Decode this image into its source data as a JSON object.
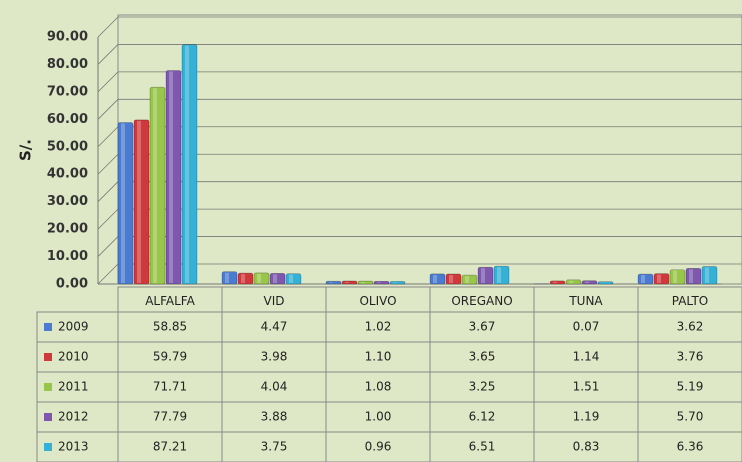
{
  "chart_data": {
    "type": "bar",
    "ylabel": "S/.",
    "categories": [
      "ALFALFA",
      "VID",
      "OLIVO",
      "OREGANO",
      "TUNA",
      "PALTO"
    ],
    "series": [
      {
        "name": "2009",
        "color": "#4a7bd0",
        "values": [
          58.85,
          4.47,
          1.02,
          3.67,
          0.07,
          3.62
        ],
        "value_labels": [
          "58.85",
          "4.47",
          "1.02",
          "3.67",
          "0.07",
          "3.62"
        ]
      },
      {
        "name": "2010",
        "color": "#d0393b",
        "values": [
          59.79,
          3.98,
          1.1,
          3.65,
          1.14,
          3.76
        ],
        "value_labels": [
          "59.79",
          "3.98",
          "1.10",
          "3.65",
          "1.14",
          "3.76"
        ]
      },
      {
        "name": "2011",
        "color": "#98c64a",
        "values": [
          71.71,
          4.04,
          1.08,
          3.25,
          1.51,
          5.19
        ],
        "value_labels": [
          "71.71",
          "4.04",
          "1.08",
          "3.25",
          "1.51",
          "5.19"
        ]
      },
      {
        "name": "2012",
        "color": "#7d58ae",
        "values": [
          77.79,
          3.88,
          1.0,
          6.12,
          1.19,
          5.7
        ],
        "value_labels": [
          "77.79",
          "3.88",
          "1.00",
          "6.12",
          "1.19",
          "5.70"
        ]
      },
      {
        "name": "2013",
        "color": "#35b1d6",
        "values": [
          87.21,
          3.75,
          0.96,
          6.51,
          0.83,
          6.36
        ],
        "value_labels": [
          "87.21",
          "3.75",
          "0.96",
          "6.51",
          "0.83",
          "6.36"
        ]
      }
    ],
    "ylim": [
      0,
      90
    ],
    "yticks": [
      {
        "value": 0,
        "label": "0.00"
      },
      {
        "value": 10,
        "label": "10.00"
      },
      {
        "value": 20,
        "label": "20.00"
      },
      {
        "value": 30,
        "label": "30.00"
      },
      {
        "value": 40,
        "label": "40.00"
      },
      {
        "value": 50,
        "label": "50.00"
      },
      {
        "value": 60,
        "label": "60.00"
      },
      {
        "value": 70,
        "label": "70.00"
      },
      {
        "value": 80,
        "label": "80.00"
      },
      {
        "value": 90,
        "label": "90.00"
      }
    ],
    "grid": true
  }
}
